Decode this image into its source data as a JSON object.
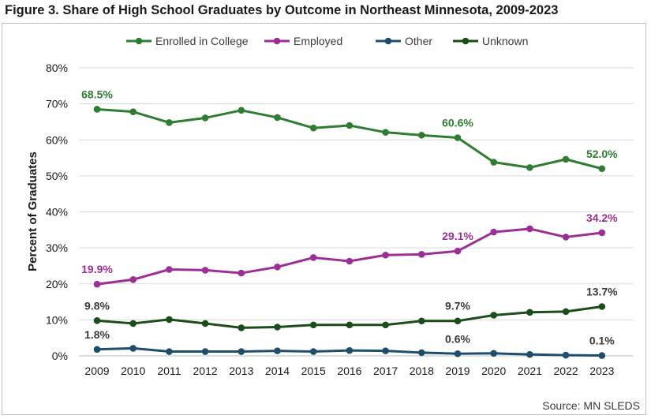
{
  "title": "Figure 3. Share of High School Graduates by Outcome in Northeast Minnesota, 2009-2023",
  "source": "Source: MN SLEDS",
  "chart_data": {
    "type": "line",
    "title": "Figure 3. Share of High School Graduates by Outcome in Northeast Minnesota, 2009-2023",
    "xlabel": "",
    "ylabel": "Percent of Graduates",
    "ylim": [
      0,
      80
    ],
    "yticks": [
      0,
      10,
      20,
      30,
      40,
      50,
      60,
      70,
      80
    ],
    "ytick_labels": [
      "0%",
      "10%",
      "20%",
      "30%",
      "40%",
      "50%",
      "60%",
      "70%",
      "80%"
    ],
    "grid": true,
    "legend_position": "top",
    "categories": [
      "2009",
      "2010",
      "2011",
      "2012",
      "2013",
      "2014",
      "2015",
      "2016",
      "2017",
      "2018",
      "2019",
      "2020",
      "2021",
      "2022",
      "2023"
    ],
    "series": [
      {
        "name": "Enrolled in College",
        "color": "#2e7d32",
        "values": [
          68.5,
          67.8,
          64.8,
          66.1,
          68.2,
          66.2,
          63.3,
          64.0,
          62.1,
          61.3,
          60.6,
          53.8,
          52.3,
          54.6,
          52.0
        ],
        "labels": [
          {
            "index": 0,
            "text": "68.5%"
          },
          {
            "index": 10,
            "text": "60.6%"
          },
          {
            "index": 14,
            "text": "52.0%"
          }
        ]
      },
      {
        "name": "Employed",
        "color": "#9c2f96",
        "values": [
          19.9,
          21.2,
          24.0,
          23.8,
          23.0,
          24.7,
          27.3,
          26.3,
          28.0,
          28.2,
          29.1,
          34.4,
          35.3,
          33.0,
          34.2
        ],
        "labels": [
          {
            "index": 0,
            "text": "19.9%"
          },
          {
            "index": 10,
            "text": "29.1%"
          },
          {
            "index": 14,
            "text": "34.2%"
          }
        ]
      },
      {
        "name": "Other",
        "color": "#1f4e6b",
        "values": [
          1.8,
          2.1,
          1.2,
          1.2,
          1.2,
          1.4,
          1.2,
          1.5,
          1.4,
          0.9,
          0.6,
          0.7,
          0.4,
          0.2,
          0.1
        ],
        "labels": [
          {
            "index": 0,
            "text": "1.8%"
          },
          {
            "index": 10,
            "text": "0.6%"
          },
          {
            "index": 14,
            "text": "0.1%"
          }
        ]
      },
      {
        "name": "Unknown",
        "color": "#1b4d1b",
        "values": [
          9.8,
          9.0,
          10.1,
          9.0,
          7.8,
          8.0,
          8.6,
          8.6,
          8.6,
          9.7,
          9.7,
          11.3,
          12.1,
          12.3,
          13.7
        ],
        "labels": [
          {
            "index": 0,
            "text": "9.8%"
          },
          {
            "index": 10,
            "text": "9.7%"
          },
          {
            "index": 14,
            "text": "13.7%"
          }
        ]
      }
    ]
  }
}
